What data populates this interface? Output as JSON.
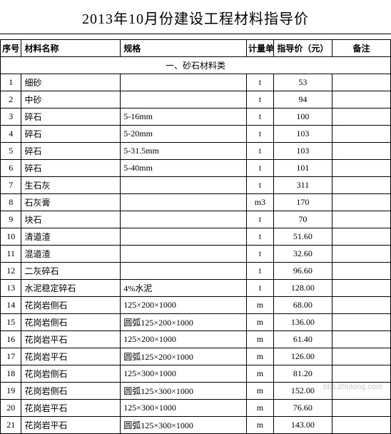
{
  "title": "2013年10月份建设工程材料指导价",
  "columns": {
    "seq": "序号",
    "name": "材料名称",
    "spec": "规格",
    "unit": "计量单位",
    "price": "指导价（元）",
    "note": "备注"
  },
  "section_header": "一、砂石材料类",
  "rows": [
    {
      "seq": "1",
      "name": "细砂",
      "spec": "",
      "unit": "t",
      "price": "53",
      "note": ""
    },
    {
      "seq": "2",
      "name": "中砂",
      "spec": "",
      "unit": "t",
      "price": "94",
      "note": ""
    },
    {
      "seq": "3",
      "name": "碎石",
      "spec": "5-16mm",
      "unit": "t",
      "price": "100",
      "note": ""
    },
    {
      "seq": "4",
      "name": "碎石",
      "spec": "5-20mm",
      "unit": "t",
      "price": "103",
      "note": ""
    },
    {
      "seq": "5",
      "name": "碎石",
      "spec": "5-31.5mm",
      "unit": "t",
      "price": "103",
      "note": ""
    },
    {
      "seq": "6",
      "name": "碎石",
      "spec": "5-40mm",
      "unit": "t",
      "price": "101",
      "note": ""
    },
    {
      "seq": "7",
      "name": "生石灰",
      "spec": "",
      "unit": "t",
      "price": "311",
      "note": ""
    },
    {
      "seq": "8",
      "name": "石灰膏",
      "spec": "",
      "unit": "m3",
      "price": "170",
      "note": ""
    },
    {
      "seq": "9",
      "name": "块石",
      "spec": "",
      "unit": "t",
      "price": "70",
      "note": ""
    },
    {
      "seq": "10",
      "name": "清道渣",
      "spec": "",
      "unit": "t",
      "price": "51.60",
      "note": ""
    },
    {
      "seq": "11",
      "name": "混道渣",
      "spec": "",
      "unit": "t",
      "price": "32.60",
      "note": ""
    },
    {
      "seq": "12",
      "name": "二灰碎石",
      "spec": "",
      "unit": "t",
      "price": "96.60",
      "note": ""
    },
    {
      "seq": "13",
      "name": "水泥稳定碎石",
      "spec": "4%水泥",
      "unit": "t",
      "price": "128.00",
      "note": ""
    },
    {
      "seq": "14",
      "name": "花岗岩侧石",
      "spec": "125×200×1000",
      "unit": "m",
      "price": "68.00",
      "note": ""
    },
    {
      "seq": "15",
      "name": "花岗岩侧石",
      "spec": "圆弧125×200×1000",
      "unit": "m",
      "price": "136.00",
      "note": ""
    },
    {
      "seq": "16",
      "name": "花岗岩平石",
      "spec": "125×200×1000",
      "unit": "m",
      "price": "61.40",
      "note": ""
    },
    {
      "seq": "17",
      "name": "花岗岩平石",
      "spec": "圆弧125×200×1000",
      "unit": "m",
      "price": "126.00",
      "note": ""
    },
    {
      "seq": "18",
      "name": "花岗岩侧石",
      "spec": "125×300×1000",
      "unit": "m",
      "price": "81.20",
      "note": ""
    },
    {
      "seq": "19",
      "name": "花岗岩侧石",
      "spec": "圆弧125×300×1000",
      "unit": "m",
      "price": "152.00",
      "note": ""
    },
    {
      "seq": "20",
      "name": "花岗岩平石",
      "spec": "125×300×1000",
      "unit": "m",
      "price": "76.60",
      "note": ""
    },
    {
      "seq": "21",
      "name": "花岗岩平石",
      "spec": "圆弧125×300×1000",
      "unit": "m",
      "price": "143.00",
      "note": ""
    }
  ],
  "watermark": "bbs.zhulong.com",
  "style": {
    "title_fontsize": 20,
    "cell_fontsize": 12,
    "border_color": "#000000",
    "background_color": "#ffffff",
    "text_color": "#000000",
    "watermark_color": "#cccccc"
  }
}
